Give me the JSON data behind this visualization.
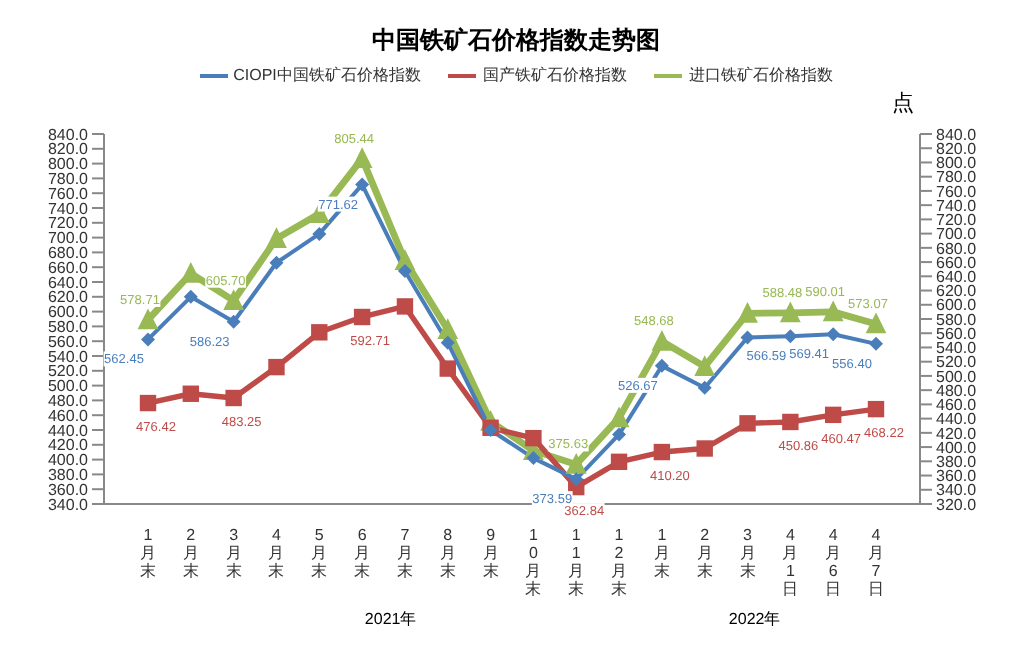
{
  "chart_data": {
    "type": "line",
    "title": "中国铁矿石价格指数走势图",
    "categories": [
      "1月末",
      "2月末",
      "3月末",
      "4月末",
      "5月末",
      "6月末",
      "7月末",
      "8月末",
      "9月末",
      "10月末",
      "11月末",
      "12月末",
      "1月末",
      "2月末",
      "3月末",
      "4月1日",
      "4月6日",
      "4月7日"
    ],
    "series": [
      {
        "name": "CIOPI中国铁矿石价格指数",
        "color": "#4a7ebb",
        "marker": "diamond",
        "values": [
          562.45,
          620,
          586.23,
          666,
          705,
          771.62,
          655,
          558,
          440,
          402,
          373.59,
          434,
          526.67,
          497,
          565,
          566.59,
          569.41,
          556.4
        ],
        "value_labels": [
          "562.45",
          null,
          "586.23",
          null,
          null,
          "771.62",
          null,
          null,
          null,
          null,
          "373.59",
          null,
          "526.67",
          null,
          null,
          "566.59",
          "569.41",
          "556.40"
        ]
      },
      {
        "name": "国产铁矿石价格指数",
        "color": "#be4b48",
        "marker": "square",
        "values": [
          476.42,
          489,
          483.25,
          525,
          572,
          592.71,
          607,
          523,
          443,
          429,
          362.84,
          397,
          410.2,
          415,
          449,
          450.86,
          460.47,
          468.22
        ],
        "value_labels": [
          "476.42",
          null,
          "483.25",
          null,
          null,
          "592.71",
          null,
          null,
          null,
          null,
          "362.84",
          null,
          "410.20",
          null,
          null,
          "450.86",
          "460.47",
          "468.22"
        ]
      },
      {
        "name": "进口铁矿石价格指数",
        "color": "#98b954",
        "marker": "triangle",
        "axis": "y2",
        "values": [
          578.71,
          644,
          605.7,
          693,
          728,
          805.44,
          662,
          565,
          436,
          395,
          375.63,
          441,
          548.68,
          513,
          588,
          588.48,
          590.01,
          573.07
        ],
        "value_labels": [
          "578.71",
          null,
          "605.70",
          null,
          null,
          "805.44",
          null,
          null,
          null,
          null,
          "375.63",
          null,
          "548.68",
          null,
          null,
          "588.48",
          "590.01",
          "573.07"
        ]
      }
    ],
    "ylim": [
      340,
      840
    ],
    "yticks": [
      {
        "value": 340,
        "label": "340.0"
      },
      {
        "value": 360,
        "label": "360.0"
      },
      {
        "value": 380,
        "label": "380.0"
      },
      {
        "value": 400,
        "label": "400.0"
      },
      {
        "value": 420,
        "label": "420.0"
      },
      {
        "value": 440,
        "label": "440.0"
      },
      {
        "value": 460,
        "label": "460.0"
      },
      {
        "value": 480,
        "label": "480.0"
      },
      {
        "value": 500,
        "label": "500.0"
      },
      {
        "value": 520,
        "label": "520.0"
      },
      {
        "value": 540,
        "label": "540.0"
      },
      {
        "value": 560,
        "label": "560.0"
      },
      {
        "value": 580,
        "label": "580.0"
      },
      {
        "value": 600,
        "label": "600.0"
      },
      {
        "value": 620,
        "label": "620.0"
      },
      {
        "value": 640,
        "label": "640.0"
      },
      {
        "value": 660,
        "label": "660.0"
      },
      {
        "value": 680,
        "label": "680.0"
      },
      {
        "value": 700,
        "label": "700.0"
      },
      {
        "value": 720,
        "label": "720.0"
      },
      {
        "value": 740,
        "label": "740.0"
      },
      {
        "value": 760,
        "label": "760.0"
      },
      {
        "value": 780,
        "label": "780.0"
      },
      {
        "value": 800,
        "label": "800.0"
      },
      {
        "value": 820,
        "label": "820.0"
      },
      {
        "value": 840,
        "label": "840.0"
      }
    ],
    "y2label": "点",
    "y2lim": [
      320,
      840
    ],
    "y2ticks": [
      {
        "value": 320,
        "label": "320.0"
      },
      {
        "value": 340,
        "label": "340.0"
      },
      {
        "value": 360,
        "label": "360.0"
      },
      {
        "value": 380,
        "label": "380.0"
      },
      {
        "value": 400,
        "label": "400.0"
      },
      {
        "value": 420,
        "label": "420.0"
      },
      {
        "value": 440,
        "label": "440.0"
      },
      {
        "value": 460,
        "label": "460.0"
      },
      {
        "value": 480,
        "label": "480.0"
      },
      {
        "value": 500,
        "label": "500.0"
      },
      {
        "value": 520,
        "label": "520.0"
      },
      {
        "value": 540,
        "label": "540.0"
      },
      {
        "value": 560,
        "label": "560.0"
      },
      {
        "value": 580,
        "label": "580.0"
      },
      {
        "value": 600,
        "label": "600.0"
      },
      {
        "value": 620,
        "label": "620.0"
      },
      {
        "value": 640,
        "label": "640.0"
      },
      {
        "value": 660,
        "label": "660.0"
      },
      {
        "value": 680,
        "label": "680.0"
      },
      {
        "value": 700,
        "label": "700.0"
      },
      {
        "value": 720,
        "label": "720.0"
      },
      {
        "value": 740,
        "label": "740.0"
      },
      {
        "value": 760,
        "label": "760.0"
      },
      {
        "value": 780,
        "label": "780.0"
      },
      {
        "value": 800,
        "label": "800.0"
      },
      {
        "value": 820,
        "label": "820.0"
      },
      {
        "value": 840,
        "label": "840.0"
      }
    ],
    "annotations": [
      "2021年",
      "2022年"
    ],
    "legend": "top"
  }
}
